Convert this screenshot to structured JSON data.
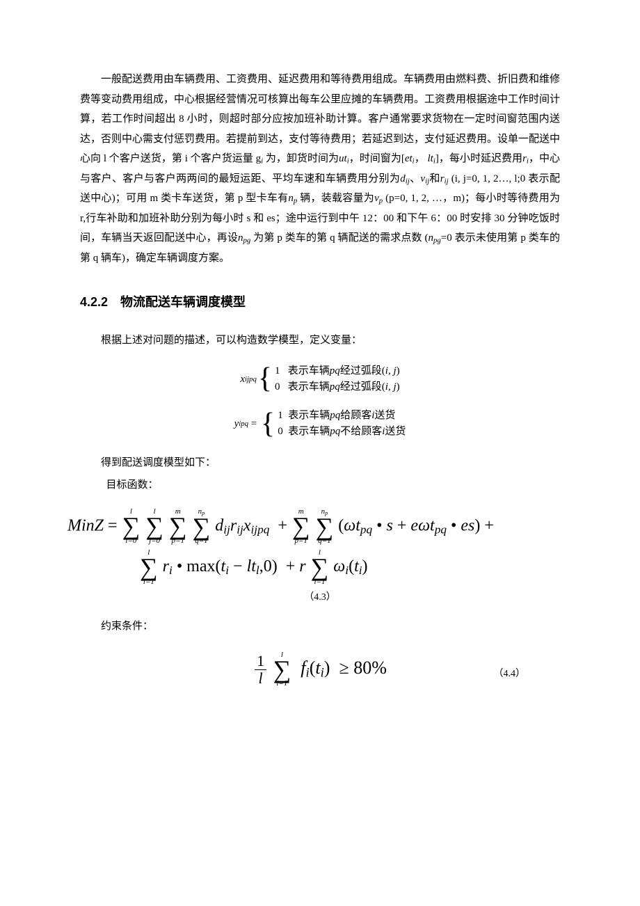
{
  "p1": "一般配送费用由车辆费用、工资费用、延迟费用和等待费用组成。车辆费用由燃料费、折旧费和维修费等变动费用组成，中心根据经营情况可核算出每车公里应摊的车辆费用。工资费用根据途中工作时间计算，若工作时间超出 8 小时，则超时部分应按加班补助计算。客户通常要求货物在一定时间窗范围内送达，否则中心需支付惩罚费用。若提前到达，支付等待费用；若延迟到达，支付延迟费用。设单一配送中心向 l 个客户送货，第 i 个客户货运量 g",
  "p1b": " 为，卸货时间为",
  "p1c": "，时间窗为[",
  "p1d": "，",
  "p1e": "]，每小时延迟费用",
  "p1f": "，中心与客户、客户与客户两两间的最短运距、平均车速和车辆费用分别为",
  "p1g": "、",
  "p1h": "和",
  "p1i": " (i, j=0, 1, 2…, l;0 表示配送中心)；可用 m 类卡车送货，第 p 型卡车有",
  "p1j": " 辆，装载容量为",
  "p1k": " (p=0, 1, 2, …，m)；每小时等待费用为 r,行车补助和加班补助分别为每小时 s 和 es；途中运行到中午 12：00 和下午 6：00 时安排 30 分钟吃饭时间，车辆当天返回配送中心，再设",
  "p1l": " 为第 p 类车的第 q 辆配送的需求点数 (",
  "p1m": "=0 表示未使用第 p 类车的第 q 辆车)，确定车辆调度方案。",
  "heading": "4.2.2　物流配送车辆调度模型",
  "p2": "根据上述对问题的描述，可以构造数学模型，定义变量：",
  "eq1": {
    "lhs": "x",
    "lhs_sub": "ijpq",
    "case1_val": "1",
    "case1_txt": "表示车辆",
    "case1_txt2": "经过弧段(",
    "case1_txt3": ",",
    "case1_txt4": ")",
    "case2_val": "0",
    "case2_txt": "表示车辆",
    "case2_txt2": "经过弧段(",
    "case2_txt3": ",",
    "case2_txt4": ")",
    "pq": "pq",
    "i": "i",
    "j": "j"
  },
  "eq2": {
    "lhs": "y",
    "lhs_sub": "ipq",
    "case1_val": "1",
    "case1_txt": "表示车辆",
    "case1_mid": "给顾客",
    "case1_end": "送货",
    "case2_val": "0",
    "case2_txt": "表示车辆",
    "case2_mid": "不给顾客",
    "case2_end": "送货",
    "pq": "pq",
    "i": "i"
  },
  "p3": "得到配送调度模型如下：",
  "p4": "目标函数：",
  "obj": {
    "minz": "MinZ",
    "eq": "=",
    "s1_top": "l",
    "s1_bot": "i=0",
    "s2_top": "l",
    "s2_bot": "j=0",
    "s3_top": "m",
    "s3_bot": "p=1",
    "s4_top": "n",
    "s4_top_sub": "p",
    "s4_bot": "q=1",
    "term1_d": "d",
    "term1_d_sub": "ij",
    "term1_r": "r",
    "term1_r_sub": "ij",
    "term1_x": "x",
    "term1_x_sub": "ijpq",
    "plus": "+",
    "s5_top": "m",
    "s5_bot": "p=1",
    "s6_top": "n",
    "s6_top_sub": "p",
    "s6_bot": "q=1",
    "lp": "(",
    "omega": "ω",
    "t": "t",
    "pq": "pq",
    "dot": "•",
    "s": "s",
    "e": "e",
    "es": "es",
    "rp": ")",
    "line2_s1_top": "l",
    "line2_s1_bot": "i=1",
    "ri": "r",
    "ri_sub": "i",
    "max": "max(",
    "ti": "t",
    "ti_sub": "i",
    "minus": "−",
    "lt": "lt",
    "lt_sub": "l",
    "comma0": ",0)",
    "r": "r",
    "line2_s2_top": "l",
    "line2_s2_bot": "i=1",
    "wi": "ω",
    "wi_sub": "i",
    "ti2_l": "(",
    "ti2": "t",
    "ti2_sub": "i",
    "ti2_r": ")"
  },
  "eqnum1": "（4.3）",
  "p5": "约束条件：",
  "con": {
    "one": "1",
    "l": "l",
    "sum_top": "l",
    "sum_bot": "i=1",
    "f": "f",
    "f_sub": "i",
    "lp": "(",
    "t": "t",
    "t_sub": "i",
    "rp": ")",
    "ge": "≥",
    "val": "80%",
    "num": "（4.4）"
  }
}
